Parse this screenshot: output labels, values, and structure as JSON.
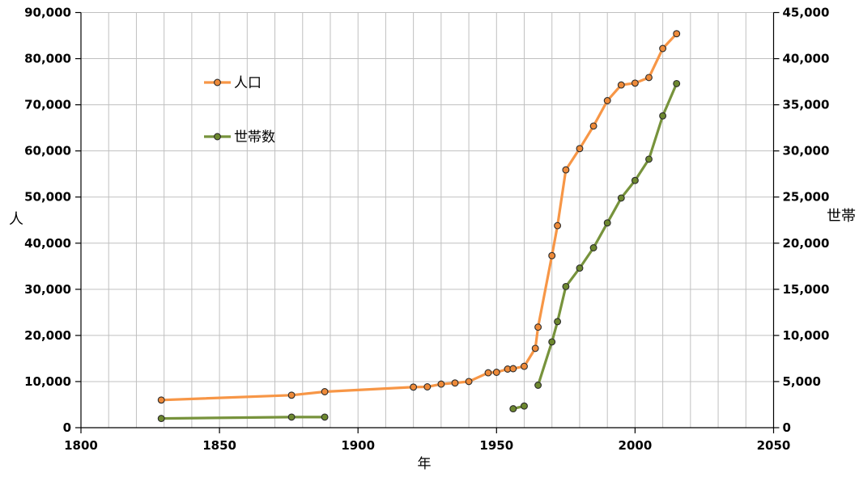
{
  "chart_data": {
    "type": "line",
    "title": "",
    "x_axis": {
      "label": "年",
      "min": 1800,
      "max": 2050,
      "major_tick_step": 50,
      "minor_grid_step": 10,
      "tick_labels": [
        "1800",
        "1850",
        "1900",
        "1950",
        "2000",
        "2050"
      ]
    },
    "y_axis_left": {
      "label": "人",
      "min": 0,
      "max": 90000,
      "tick_step": 10000,
      "tick_labels": [
        "0",
        "10,000",
        "20,000",
        "30,000",
        "40,000",
        "50,000",
        "60,000",
        "70,000",
        "80,000",
        "90,000"
      ]
    },
    "y_axis_right": {
      "label": "世帯",
      "min": 0,
      "max": 45000,
      "tick_step": 5000,
      "tick_labels": [
        "0",
        "5,000",
        "10,000",
        "15,000",
        "20,000",
        "25,000",
        "30,000",
        "35,000",
        "40,000",
        "45,000"
      ]
    },
    "grid": {
      "show": true,
      "color": "#c0c0c0"
    },
    "legend": {
      "position": "inside-upper-left"
    },
    "series": [
      {
        "key": "population",
        "name": "人口",
        "axis": "left",
        "line_color": "#F79646",
        "marker_fill": "#EE8A39",
        "marker_stroke": "#2b2b2b",
        "segments": [
          [
            [
              1829,
              6000
            ],
            [
              1876,
              7050
            ],
            [
              1888,
              7800
            ],
            [
              1920,
              8800
            ],
            [
              1925,
              8850
            ],
            [
              1930,
              9450
            ],
            [
              1935,
              9700
            ],
            [
              1940,
              10000
            ],
            [
              1947,
              11900
            ],
            [
              1950,
              12000
            ],
            [
              1954,
              12700
            ],
            [
              1956,
              12800
            ],
            [
              1960,
              13300
            ],
            [
              1964,
              17200
            ],
            [
              1965,
              21800
            ],
            [
              1970,
              37300
            ],
            [
              1972,
              43800
            ],
            [
              1975,
              55900
            ],
            [
              1980,
              60500
            ],
            [
              1985,
              65400
            ],
            [
              1990,
              70900
            ],
            [
              1995,
              74300
            ],
            [
              2000,
              74700
            ],
            [
              2005,
              75900
            ],
            [
              2010,
              82200
            ],
            [
              2015,
              85400
            ]
          ]
        ]
      },
      {
        "key": "households",
        "name": "世帯数",
        "axis": "right",
        "line_color": "#77933C",
        "marker_fill": "#6D882F",
        "marker_stroke": "#2b2b2b",
        "segments": [
          [
            [
              1829,
              1000
            ],
            [
              1876,
              1150
            ],
            [
              1888,
              1150
            ]
          ],
          [
            [
              1956,
              2050
            ],
            [
              1960,
              2350
            ]
          ],
          [
            [
              1965,
              4600
            ],
            [
              1970,
              9300
            ],
            [
              1972,
              11500
            ],
            [
              1975,
              15300
            ],
            [
              1980,
              17300
            ],
            [
              1985,
              19500
            ],
            [
              1990,
              22200
            ],
            [
              1995,
              24900
            ],
            [
              2000,
              26800
            ],
            [
              2005,
              29100
            ],
            [
              2010,
              33800
            ],
            [
              2015,
              37300
            ]
          ]
        ]
      }
    ]
  }
}
